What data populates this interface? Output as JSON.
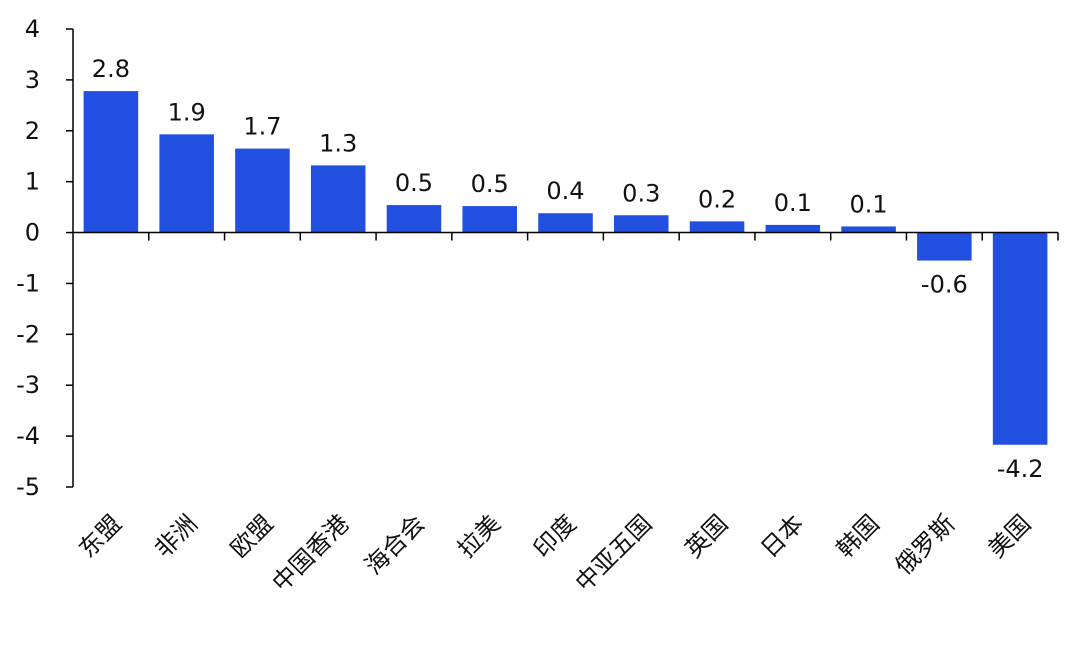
{
  "chart_data": {
    "type": "bar",
    "categories": [
      "东盟",
      "非洲",
      "欧盟",
      "中国香港",
      "海合会",
      "拉美",
      "印度",
      "中亚五国",
      "英国",
      "日本",
      "韩国",
      "俄罗斯",
      "美国"
    ],
    "values": [
      2.8,
      1.9,
      1.7,
      1.3,
      0.5,
      0.5,
      0.4,
      0.3,
      0.2,
      0.1,
      0.1,
      -0.6,
      -4.2
    ],
    "bar_values": [
      2.78,
      1.93,
      1.65,
      1.32,
      0.54,
      0.52,
      0.38,
      0.34,
      0.22,
      0.15,
      0.12,
      -0.55,
      -4.17
    ],
    "data_labels": [
      "2.8",
      "1.9",
      "1.7",
      "1.3",
      "0.5",
      "0.5",
      "0.4",
      "0.3",
      "0.2",
      "0.1",
      "0.1",
      "-0.6",
      "-4.2"
    ],
    "ylim": [
      -5,
      4
    ],
    "yticks": [
      4,
      3,
      2,
      1,
      0,
      -1,
      -2,
      -3,
      -4,
      -5
    ],
    "ytick_labels": [
      "4",
      "3",
      "2",
      "1",
      "0",
      "-1",
      "-2",
      "-3",
      "-4",
      "-5"
    ],
    "bar_color": "#2150E0",
    "legend": "none",
    "grid": false
  }
}
